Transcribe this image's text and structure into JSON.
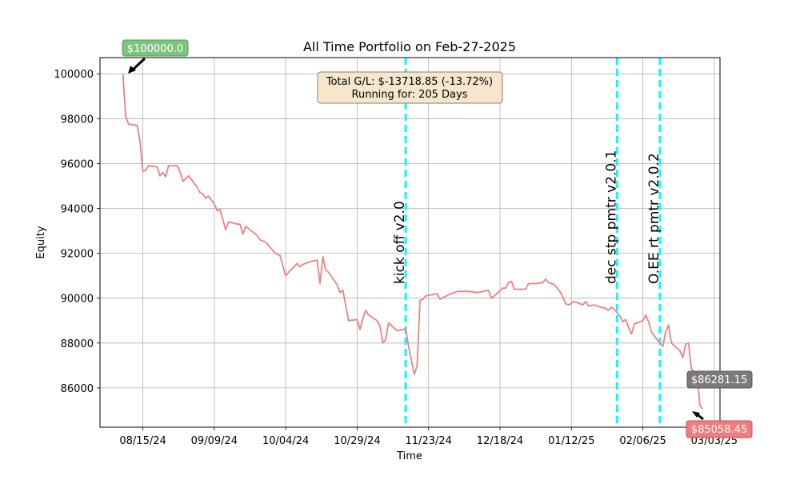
{
  "chart_data": {
    "type": "line",
    "title": "All Time Portfolio on Feb-27-2025",
    "xlabel": "Time",
    "ylabel": "Equity",
    "x_ticks": [
      "08/15/24",
      "09/09/24",
      "10/04/24",
      "10/29/24",
      "11/23/24",
      "12/18/24",
      "01/12/25",
      "02/06/25",
      "03/03/25"
    ],
    "y_ticks": [
      86000,
      88000,
      90000,
      92000,
      94000,
      96000,
      98000,
      100000
    ],
    "xlim": [
      "2024-07-31",
      "2025-03-05"
    ],
    "ylim": [
      84250,
      100720
    ],
    "grid": true,
    "series": [
      {
        "color": "#f08080",
        "points": [
          [
            "2024-08-08",
            100000
          ],
          [
            "2024-08-09",
            98100
          ],
          [
            "2024-08-10",
            97750
          ],
          [
            "2024-08-13",
            97700
          ],
          [
            "2024-08-14",
            97000
          ],
          [
            "2024-08-15",
            95650
          ],
          [
            "2024-08-16",
            95700
          ],
          [
            "2024-08-17",
            95900
          ],
          [
            "2024-08-20",
            95850
          ],
          [
            "2024-08-21",
            95450
          ],
          [
            "2024-08-22",
            95600
          ],
          [
            "2024-08-23",
            95400
          ],
          [
            "2024-08-24",
            95900
          ],
          [
            "2024-08-27",
            95900
          ],
          [
            "2024-08-28",
            95650
          ],
          [
            "2024-08-29",
            95200
          ],
          [
            "2024-08-31",
            95450
          ],
          [
            "2024-09-03",
            94950
          ],
          [
            "2024-09-04",
            94700
          ],
          [
            "2024-09-05",
            94650
          ],
          [
            "2024-09-06",
            94450
          ],
          [
            "2024-09-07",
            94550
          ],
          [
            "2024-09-09",
            94200
          ],
          [
            "2024-09-10",
            93900
          ],
          [
            "2024-09-11",
            93950
          ],
          [
            "2024-09-12",
            93500
          ],
          [
            "2024-09-13",
            93050
          ],
          [
            "2024-09-14",
            93400
          ],
          [
            "2024-09-17",
            93300
          ],
          [
            "2024-09-18",
            93300
          ],
          [
            "2024-09-19",
            92850
          ],
          [
            "2024-09-20",
            93200
          ],
          [
            "2024-09-23",
            92900
          ],
          [
            "2024-09-24",
            92800
          ],
          [
            "2024-09-25",
            92600
          ],
          [
            "2024-09-27",
            92500
          ],
          [
            "2024-09-30",
            92050
          ],
          [
            "2024-10-01",
            91950
          ],
          [
            "2024-10-02",
            91900
          ],
          [
            "2024-10-04",
            91000
          ],
          [
            "2024-10-05",
            91150
          ],
          [
            "2024-10-08",
            91550
          ],
          [
            "2024-10-09",
            91400
          ],
          [
            "2024-10-10",
            91500
          ],
          [
            "2024-10-12",
            91600
          ],
          [
            "2024-10-15",
            91700
          ],
          [
            "2024-10-16",
            90650
          ],
          [
            "2024-10-17",
            91850
          ],
          [
            "2024-10-18",
            91250
          ],
          [
            "2024-10-19",
            91150
          ],
          [
            "2024-10-22",
            90600
          ],
          [
            "2024-10-23",
            90250
          ],
          [
            "2024-10-24",
            90350
          ],
          [
            "2024-10-26",
            89000
          ],
          [
            "2024-10-29",
            89050
          ],
          [
            "2024-10-30",
            88600
          ],
          [
            "2024-10-31",
            89100
          ],
          [
            "2024-11-01",
            89450
          ],
          [
            "2024-11-02",
            89250
          ],
          [
            "2024-11-05",
            89000
          ],
          [
            "2024-11-06",
            88750
          ],
          [
            "2024-11-07",
            88000
          ],
          [
            "2024-11-08",
            88150
          ],
          [
            "2024-11-09",
            88900
          ],
          [
            "2024-11-12",
            88550
          ],
          [
            "2024-11-14",
            88600
          ],
          [
            "2024-11-15",
            88650
          ],
          [
            "2024-11-16",
            87850
          ],
          [
            "2024-11-18",
            86600
          ],
          [
            "2024-11-19",
            87000
          ],
          [
            "2024-11-20",
            89900
          ],
          [
            "2024-11-21",
            89950
          ],
          [
            "2024-11-22",
            90100
          ],
          [
            "2024-11-26",
            90200
          ],
          [
            "2024-11-27",
            89950
          ],
          [
            "2024-11-30",
            90150
          ],
          [
            "2024-12-03",
            90300
          ],
          [
            "2024-12-07",
            90300
          ],
          [
            "2024-12-10",
            90250
          ],
          [
            "2024-12-14",
            90350
          ],
          [
            "2024-12-15",
            90000
          ],
          [
            "2024-12-16",
            90100
          ],
          [
            "2024-12-19",
            90450
          ],
          [
            "2024-12-20",
            90450
          ],
          [
            "2024-12-21",
            90700
          ],
          [
            "2024-12-22",
            90750
          ],
          [
            "2024-12-23",
            90400
          ],
          [
            "2024-12-27",
            90400
          ],
          [
            "2024-12-28",
            90650
          ],
          [
            "2024-12-31",
            90650
          ],
          [
            "2025-01-02",
            90700
          ],
          [
            "2025-01-03",
            90850
          ],
          [
            "2025-01-04",
            90700
          ],
          [
            "2025-01-06",
            90600
          ],
          [
            "2025-01-08",
            90300
          ],
          [
            "2025-01-09",
            90050
          ],
          [
            "2025-01-10",
            89750
          ],
          [
            "2025-01-11",
            89700
          ],
          [
            "2025-01-13",
            89850
          ],
          [
            "2025-01-15",
            89750
          ],
          [
            "2025-01-16",
            89700
          ],
          [
            "2025-01-17",
            89850
          ],
          [
            "2025-01-18",
            89650
          ],
          [
            "2025-01-20",
            89700
          ],
          [
            "2025-01-22",
            89600
          ],
          [
            "2025-01-24",
            89550
          ],
          [
            "2025-01-25",
            89450
          ],
          [
            "2025-01-26",
            89600
          ],
          [
            "2025-01-27",
            89500
          ],
          [
            "2025-01-29",
            89200
          ],
          [
            "2025-01-30",
            88950
          ],
          [
            "2025-01-31",
            89050
          ],
          [
            "2025-02-01",
            88700
          ],
          [
            "2025-02-02",
            88400
          ],
          [
            "2025-02-03",
            88850
          ],
          [
            "2025-02-06",
            89000
          ],
          [
            "2025-02-07",
            89250
          ],
          [
            "2025-02-08",
            88950
          ],
          [
            "2025-02-09",
            88500
          ],
          [
            "2025-02-11",
            88150
          ],
          [
            "2025-02-13",
            87850
          ],
          [
            "2025-02-14",
            88500
          ],
          [
            "2025-02-15",
            88800
          ],
          [
            "2025-02-16",
            88000
          ],
          [
            "2025-02-19",
            87650
          ],
          [
            "2025-02-20",
            87350
          ],
          [
            "2025-02-21",
            87950
          ],
          [
            "2025-02-22",
            88000
          ],
          [
            "2025-02-23",
            86850
          ],
          [
            "2025-02-25",
            86550
          ],
          [
            "2025-02-26",
            85200
          ],
          [
            "2025-02-27",
            85050
          ]
        ]
      }
    ],
    "vlines": [
      {
        "x": "2024-11-15",
        "label": "kick off v2.0",
        "color": "#00ffff"
      },
      {
        "x": "2025-01-28",
        "label": "dec stp pmtr v2.0.1",
        "color": "#00ffff"
      },
      {
        "x": "2025-02-12",
        "label": "O.EE rt pmtr v2.0.2",
        "color": "#00ffff"
      }
    ],
    "info_box": {
      "line1": "Total G/L: $-13718.85 (-13.72%)",
      "line2": "Running for: 205 Days"
    },
    "annotations": [
      {
        "text": "$100000.0",
        "x": "2024-08-08",
        "y": 100000,
        "bg": "#7ec47e",
        "fg": "#ffffff"
      },
      {
        "text": "$86281.15",
        "bg": "#7b7b7b",
        "fg": "#ffffff"
      },
      {
        "text": "$85058.45",
        "x": "2025-02-27",
        "y": 85050,
        "bg": "#f47b7b",
        "fg": "#ffffff"
      }
    ]
  }
}
